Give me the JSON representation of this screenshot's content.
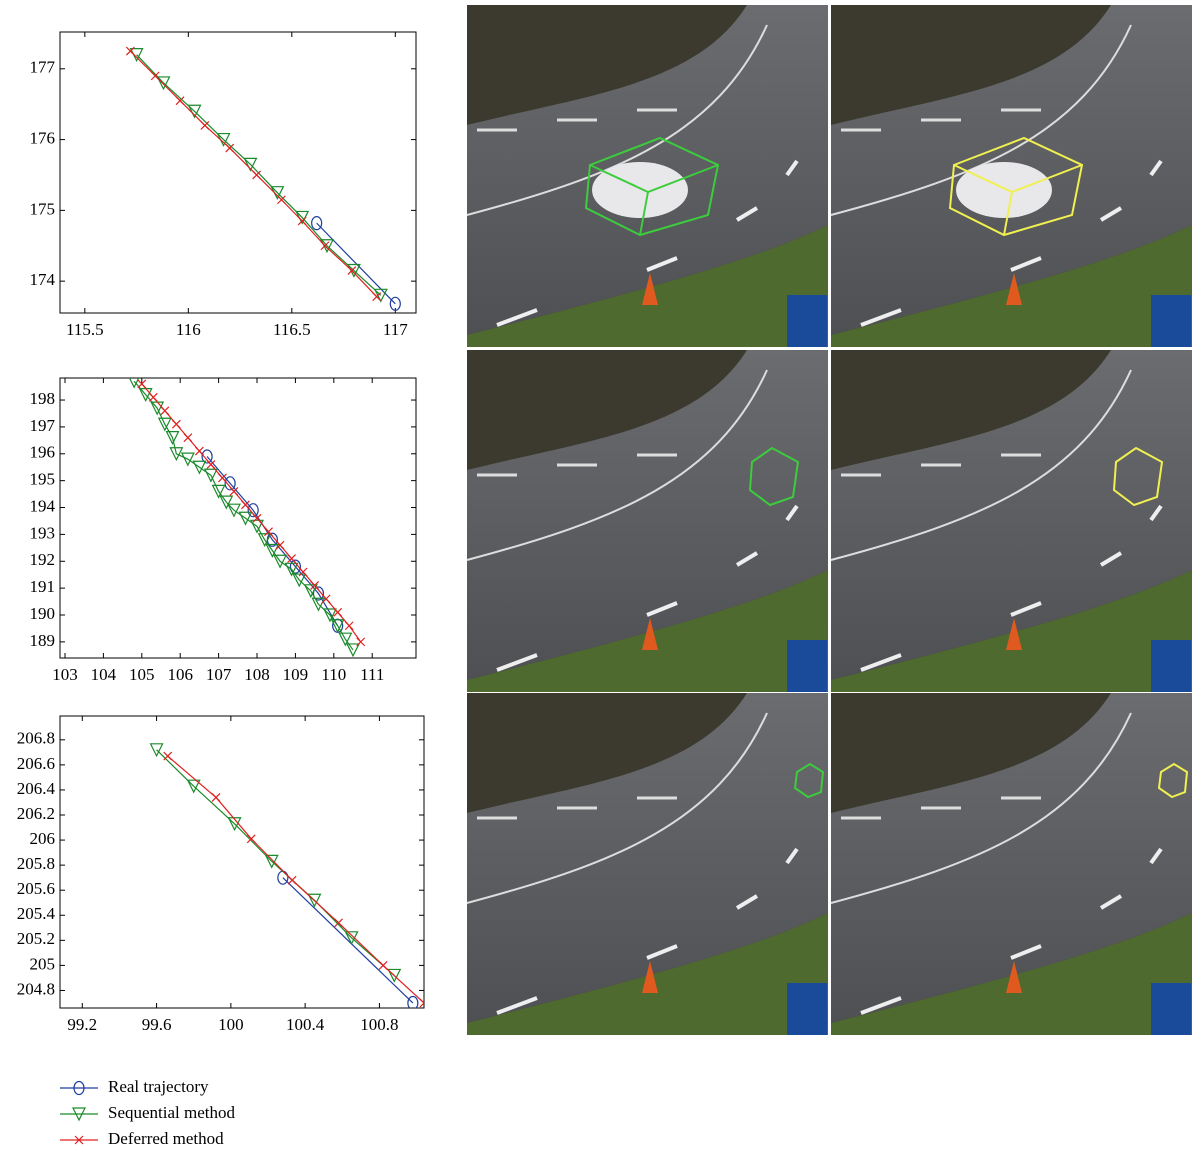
{
  "chart_data": [
    {
      "type": "line",
      "xlim": [
        115.38,
        117.1
      ],
      "ylim": [
        173.55,
        177.52
      ],
      "xticks": [
        115.5,
        116,
        116.5,
        117
      ],
      "yticks": [
        174,
        175,
        176,
        177
      ],
      "series": [
        {
          "name": "Real trajectory",
          "color": "#1f3f9f",
          "marker": "circle",
          "x": [
            116.62,
            117.0
          ],
          "values": [
            174.82,
            173.68
          ]
        },
        {
          "name": "Sequential method",
          "color": "#1a8a2a",
          "marker": "triangle-down",
          "x": [
            115.75,
            115.88,
            116.03,
            116.17,
            116.3,
            116.43,
            116.55,
            116.67,
            116.8,
            116.93
          ],
          "values": [
            177.2,
            176.8,
            176.4,
            176.0,
            175.65,
            175.25,
            174.9,
            174.5,
            174.15,
            173.8
          ]
        },
        {
          "name": "Deferred method",
          "color": "#e02020",
          "marker": "x",
          "x": [
            115.72,
            115.84,
            115.96,
            116.08,
            116.2,
            116.33,
            116.45,
            116.55,
            116.66,
            116.79,
            116.91
          ],
          "values": [
            177.25,
            176.9,
            176.55,
            176.2,
            175.88,
            175.5,
            175.15,
            174.85,
            174.5,
            174.15,
            173.78
          ]
        }
      ]
    },
    {
      "type": "line",
      "xlim": [
        102.87,
        112.14
      ],
      "ylim": [
        188.4,
        198.82
      ],
      "xticks": [
        103,
        104,
        105,
        106,
        107,
        108,
        109,
        110,
        111
      ],
      "yticks": [
        189,
        190,
        191,
        192,
        193,
        194,
        195,
        196,
        197,
        198
      ],
      "series": [
        {
          "color": "#1f3f9f",
          "marker": "circle",
          "x": [
            106.7,
            107.3,
            107.9,
            108.4,
            109.0,
            109.6,
            110.1
          ],
          "values": [
            195.9,
            194.9,
            193.9,
            192.8,
            191.8,
            190.8,
            189.6
          ]
        },
        {
          "color": "#1a8a2a",
          "marker": "triangle-down",
          "x": [
            104.8,
            105.1,
            105.4,
            105.6,
            105.8,
            105.9,
            106.2,
            106.5,
            106.8,
            107.0,
            107.2,
            107.4,
            107.7,
            108.0,
            108.2,
            108.4,
            108.6,
            108.9,
            109.1,
            109.4,
            109.6,
            109.9,
            110.1,
            110.3,
            110.5
          ],
          "values": [
            198.7,
            198.2,
            197.7,
            197.1,
            196.6,
            196.0,
            195.8,
            195.5,
            195.2,
            194.6,
            194.2,
            193.9,
            193.6,
            193.3,
            192.8,
            192.4,
            192.0,
            191.7,
            191.3,
            190.9,
            190.4,
            190.0,
            189.6,
            189.1,
            188.7
          ]
        },
        {
          "color": "#e02020",
          "marker": "x",
          "x": [
            105.0,
            105.3,
            105.6,
            105.9,
            106.2,
            106.5,
            106.8,
            107.1,
            107.4,
            107.7,
            108.0,
            108.3,
            108.6,
            108.9,
            109.2,
            109.5,
            109.8,
            110.1,
            110.4,
            110.7
          ],
          "values": [
            198.6,
            198.1,
            197.6,
            197.1,
            196.6,
            196.1,
            195.6,
            195.1,
            194.6,
            194.1,
            193.6,
            193.1,
            192.6,
            192.1,
            191.6,
            191.1,
            190.6,
            190.1,
            189.6,
            189.0
          ]
        }
      ]
    },
    {
      "type": "line",
      "xlim": [
        99.08,
        101.04
      ],
      "ylim": [
        204.66,
        206.99
      ],
      "xticks": [
        99.2,
        99.6,
        100,
        100.4,
        100.8
      ],
      "yticks": [
        204.8,
        205,
        205.2,
        205.4,
        205.6,
        205.8,
        206,
        206.2,
        206.4,
        206.6,
        206.8
      ],
      "series": [
        {
          "color": "#1f3f9f",
          "marker": "circle",
          "x": [
            100.28,
            100.98
          ],
          "values": [
            205.7,
            204.7
          ]
        },
        {
          "color": "#1a8a2a",
          "marker": "triangle-down",
          "x": [
            99.6,
            99.8,
            100.02,
            100.22,
            100.45,
            100.65,
            100.88
          ],
          "values": [
            206.72,
            206.43,
            206.13,
            205.83,
            205.52,
            205.22,
            204.92
          ]
        },
        {
          "color": "#e02020",
          "marker": "x",
          "x": [
            99.66,
            99.92,
            100.11,
            100.33,
            100.58,
            100.82,
            101.04
          ],
          "values": [
            206.67,
            206.34,
            206.01,
            205.68,
            205.34,
            205.0,
            204.7
          ]
        }
      ]
    }
  ]
}
